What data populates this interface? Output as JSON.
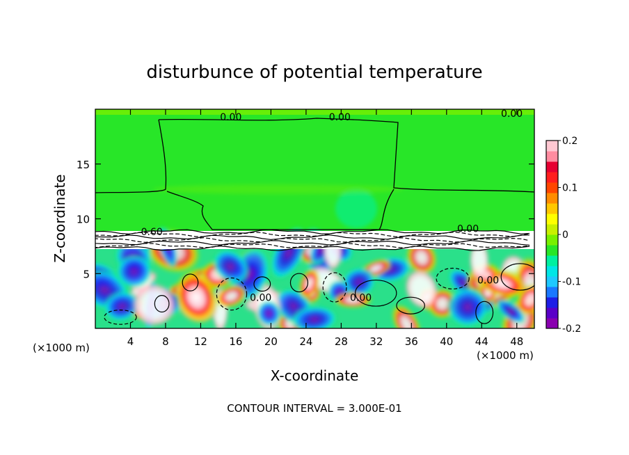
{
  "chart_data": {
    "type": "heatmap",
    "title": "disturbunce of potential temperature",
    "xlabel": "X-coordinate",
    "ylabel": "Z-coordinate",
    "x_unit_left": "(×1000 m)",
    "x_unit_right": "(×1000 m)",
    "xlim": [
      0,
      50
    ],
    "ylim": [
      0,
      20
    ],
    "x_ticks": [
      4,
      8,
      12,
      16,
      20,
      24,
      28,
      32,
      36,
      40,
      44,
      48
    ],
    "y_ticks": [
      5,
      10,
      15
    ],
    "colorbar": {
      "range": [
        -0.2,
        0.2
      ],
      "tick_labels": [
        "0.2",
        "0.1",
        "0",
        "-0.1",
        "-0.2"
      ],
      "tick_values": [
        0.2,
        0.1,
        0,
        -0.1,
        -0.2
      ],
      "colors": [
        "#8a00b0",
        "#5a00c8",
        "#1e1ee6",
        "#1a78ff",
        "#1ec8ff",
        "#00e6e6",
        "#00f0a0",
        "#28e628",
        "#78f000",
        "#c8f000",
        "#ffff00",
        "#ffc800",
        "#ff8c00",
        "#ff4600",
        "#ff1e1e",
        "#e60032",
        "#ff8ca0",
        "#ffc8d2"
      ]
    },
    "contour_labels": [
      {
        "text": "0.00",
        "x": 14.2,
        "z": 19.0
      },
      {
        "text": "0.00",
        "x": 26.6,
        "z": 19.0
      },
      {
        "text": "0.00",
        "x": 46.2,
        "z": 19.3
      },
      {
        "text": "0.60",
        "x": 5.2,
        "z": 8.5
      },
      {
        "text": "0.00",
        "x": 41.2,
        "z": 8.8
      },
      {
        "text": "0.00",
        "x": 43.5,
        "z": 4.1
      },
      {
        "text": "0.00",
        "x": 29.0,
        "z": 2.5
      },
      {
        "text": "0.00",
        "x": 17.6,
        "z": 2.5
      }
    ],
    "footer": "CONTOUR INTERVAL = 3.000E-01"
  }
}
